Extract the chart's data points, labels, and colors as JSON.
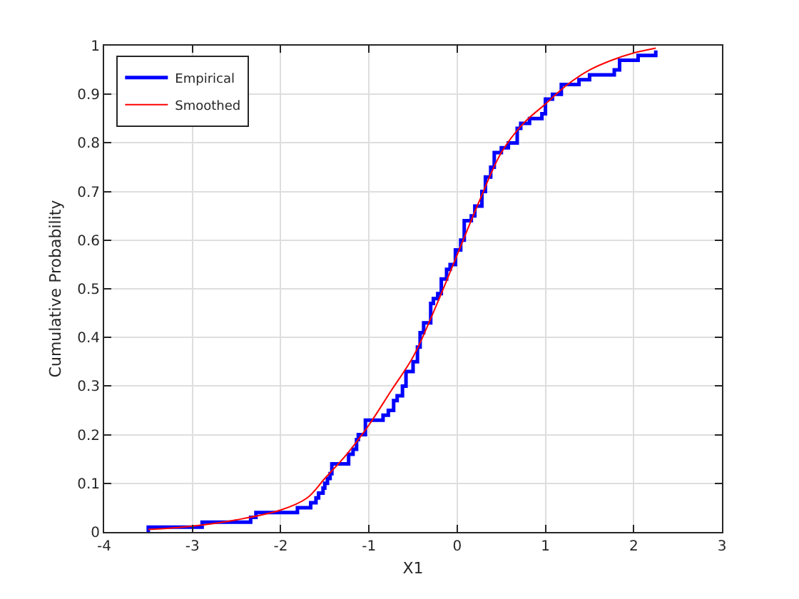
{
  "chart_data": {
    "type": "step",
    "xlabel": "X1",
    "ylabel": "Cumulative Probability",
    "xlim": [
      -4,
      3
    ],
    "ylim": [
      0,
      1
    ],
    "xticks": [
      -4,
      -3,
      -2,
      -1,
      0,
      1,
      2,
      3
    ],
    "yticks": [
      0,
      0.1,
      0.2,
      0.3,
      0.4,
      0.5,
      0.6,
      0.7,
      0.8,
      0.9,
      1
    ],
    "grid": true,
    "legend": "top left",
    "series": [
      {
        "name": "Empirical",
        "type": "step",
        "color": "#0000ff",
        "x": [
          -3.5,
          -3.5,
          -2.89,
          -2.34,
          -2.28,
          -1.81,
          -1.66,
          -1.6,
          -1.57,
          -1.52,
          -1.5,
          -1.47,
          -1.44,
          -1.42,
          -1.23,
          -1.18,
          -1.14,
          -1.12,
          -1.04,
          -0.84,
          -0.78,
          -0.72,
          -0.68,
          -0.62,
          -0.58,
          -0.5,
          -0.45,
          -0.42,
          -0.38,
          -0.3,
          -0.27,
          -0.22,
          -0.18,
          -0.12,
          -0.08,
          -0.02,
          0.04,
          0.08,
          0.16,
          0.2,
          0.28,
          0.32,
          0.38,
          0.42,
          0.5,
          0.58,
          0.68,
          0.72,
          0.82,
          0.96,
          1.0,
          1.08,
          1.18,
          1.38,
          1.5,
          1.78,
          1.84,
          2.05,
          2.25
        ],
        "values": [
          0,
          0.01,
          0.02,
          0.03,
          0.04,
          0.05,
          0.06,
          0.07,
          0.08,
          0.09,
          0.1,
          0.11,
          0.12,
          0.14,
          0.16,
          0.17,
          0.19,
          0.2,
          0.23,
          0.24,
          0.25,
          0.27,
          0.28,
          0.3,
          0.33,
          0.35,
          0.38,
          0.41,
          0.43,
          0.47,
          0.48,
          0.49,
          0.52,
          0.54,
          0.55,
          0.58,
          0.6,
          0.64,
          0.65,
          0.67,
          0.7,
          0.73,
          0.75,
          0.78,
          0.79,
          0.8,
          0.83,
          0.84,
          0.85,
          0.86,
          0.89,
          0.9,
          0.92,
          0.93,
          0.94,
          0.95,
          0.97,
          0.98,
          0.99
        ]
      },
      {
        "name": "Smoothed",
        "type": "line",
        "color": "#ff0000",
        "x": [
          -3.5,
          -3,
          -2.5,
          -2,
          -1.7,
          -1.5,
          -1.25,
          -1,
          -0.75,
          -0.5,
          -0.25,
          0,
          0.25,
          0.5,
          0.75,
          1,
          1.25,
          1.5,
          1.75,
          2,
          2.25
        ],
        "values": [
          0.005,
          0.012,
          0.025,
          0.045,
          0.07,
          0.11,
          0.16,
          0.22,
          0.29,
          0.36,
          0.46,
          0.57,
          0.68,
          0.78,
          0.84,
          0.88,
          0.92,
          0.95,
          0.97,
          0.985,
          0.995
        ]
      }
    ]
  }
}
